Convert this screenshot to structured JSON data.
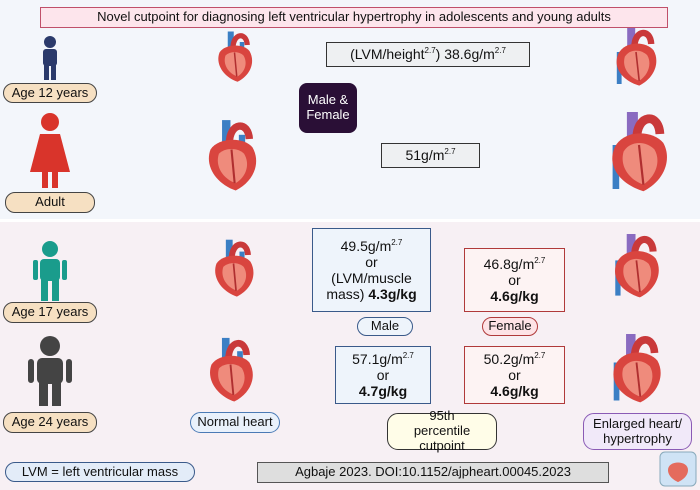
{
  "title": "Novel cutpoint for diagnosing left ventricular hypertrophy in adolescents and young adults",
  "top_panel": {
    "age_labels": [
      "Age 12 years",
      "Adult"
    ],
    "sex_label": "Male & Female",
    "cutpoint_age12": {
      "text_1": "(LVM/height",
      "sup_1": "2.7",
      "text_2": ") 38.6g/m",
      "sup_2": "2.7"
    },
    "cutpoint_adult": {
      "text_1": "51g/m",
      "sup_1": "2.7"
    }
  },
  "bottom_panel": {
    "age_labels": [
      "Age 17 years",
      "Age 24 years"
    ],
    "male_age17": {
      "text_1": "49.5g/m",
      "sup_1": "2.7",
      "or": "or",
      "text_2": "(LVM/muscle",
      "text_3": "mass)",
      "bold": "4.3g/kg"
    },
    "female_age17": {
      "text_1": "46.8g/m",
      "sup_1": "2.7",
      "or": "or",
      "bold": "4.6g/kg"
    },
    "male_age24": {
      "text_1": "57.1g/m",
      "sup_1": "2.7",
      "or": "or",
      "bold": "4.7g/kg"
    },
    "female_age24": {
      "text_1": "50.2g/m",
      "sup_1": "2.7",
      "or": "or",
      "bold": "4.6g/kg"
    },
    "sex_labels": [
      "Male",
      "Female"
    ]
  },
  "legend": {
    "normal": "Normal heart",
    "percentile": "95th percentile cutpoint",
    "enlarged": "Enlarged heart/ hypertrophy"
  },
  "footer": {
    "abbreviation": "LVM = left ventricular mass",
    "citation": "Agbaje 2023. DOI:10.1152/ajpheart.00045.2023"
  }
}
